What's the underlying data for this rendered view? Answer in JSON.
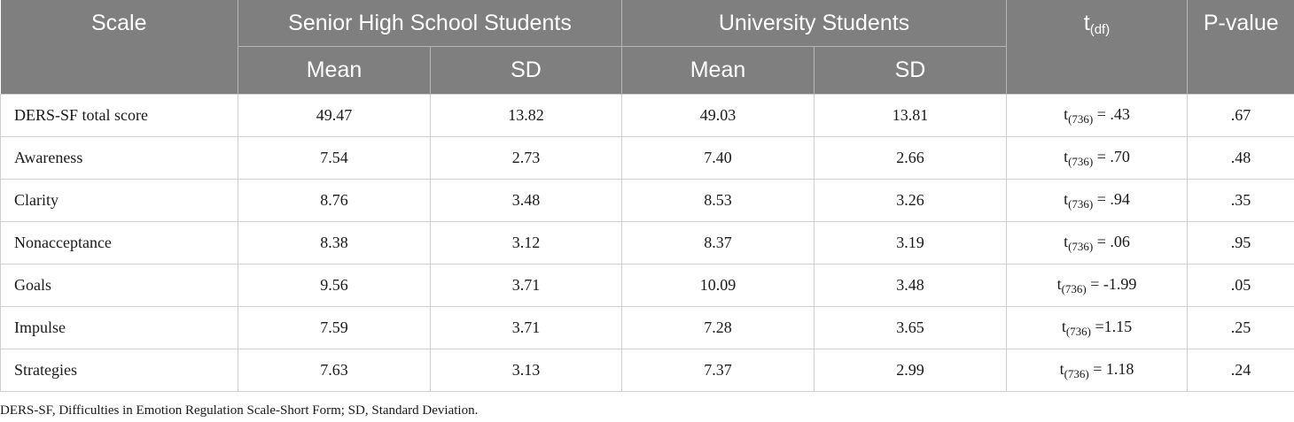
{
  "header": {
    "scale": "Scale",
    "group1": "Senior High School Students",
    "group2": "University Students",
    "t_main": "t",
    "t_sub": "(df)",
    "pvalue": "P-value",
    "mean1": "Mean",
    "sd1": "SD",
    "mean2": "Mean",
    "sd2": "SD"
  },
  "rows": [
    {
      "scale": "DERS-SF total score",
      "hs_mean": "49.47",
      "hs_sd": "13.82",
      "uni_mean": "49.03",
      "uni_sd": "13.81",
      "t_sub": "(736)",
      "t_val": " = .43",
      "p": ".67"
    },
    {
      "scale": "Awareness",
      "hs_mean": "7.54",
      "hs_sd": "2.73",
      "uni_mean": "7.40",
      "uni_sd": "2.66",
      "t_sub": "(736)",
      "t_val": " = .70",
      "p": ".48"
    },
    {
      "scale": "Clarity",
      "hs_mean": "8.76",
      "hs_sd": "3.48",
      "uni_mean": "8.53",
      "uni_sd": "3.26",
      "t_sub": "(736)",
      "t_val": " = .94",
      "p": ".35"
    },
    {
      "scale": "Nonacceptance",
      "hs_mean": "8.38",
      "hs_sd": "3.12",
      "uni_mean": "8.37",
      "uni_sd": "3.19",
      "t_sub": "(736)",
      "t_val": " = .06",
      "p": ".95"
    },
    {
      "scale": "Goals",
      "hs_mean": "9.56",
      "hs_sd": "3.71",
      "uni_mean": "10.09",
      "uni_sd": "3.48",
      "t_sub": "(736)",
      "t_val": " = -1.99",
      "p": ".05"
    },
    {
      "scale": "Impulse",
      "hs_mean": "7.59",
      "hs_sd": "3.71",
      "uni_mean": "7.28",
      "uni_sd": "3.65",
      "t_sub": "(736)",
      "t_val": " =1.15",
      "p": ".25"
    },
    {
      "scale": "Strategies",
      "hs_mean": "7.63",
      "hs_sd": "3.13",
      "uni_mean": "7.37",
      "uni_sd": "2.99",
      "t_sub": "(736)",
      "t_val": " = 1.18",
      "p": ".24"
    }
  ],
  "footnote": "DERS-SF, Difficulties in Emotion Regulation Scale-Short Form; SD, Standard Deviation.",
  "colors": {
    "header_bg": "#7f7f7f",
    "header_text": "#ffffff",
    "grid": "#cfcfcf"
  }
}
